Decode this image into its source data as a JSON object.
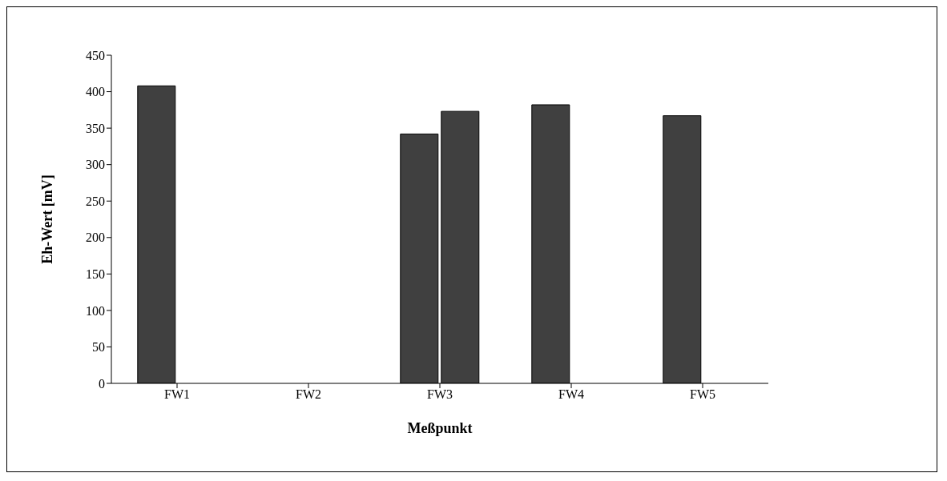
{
  "chart_data": {
    "type": "bar",
    "xlabel": "Meßpunkt",
    "ylabel": "Eh-Wert [mV]",
    "categories": [
      "FW1",
      "FW2",
      "FW3",
      "FW4",
      "FW5"
    ],
    "series": [
      {
        "color": "#404040",
        "values": [
          408,
          null,
          342,
          382,
          367
        ]
      },
      {
        "color": "#404040",
        "values": [
          null,
          null,
          373,
          null,
          null
        ]
      }
    ],
    "ylim": [
      0,
      450
    ],
    "yticks": [
      0,
      50,
      100,
      150,
      200,
      250,
      300,
      350,
      400,
      450
    ],
    "grid": false,
    "legend": false
  }
}
